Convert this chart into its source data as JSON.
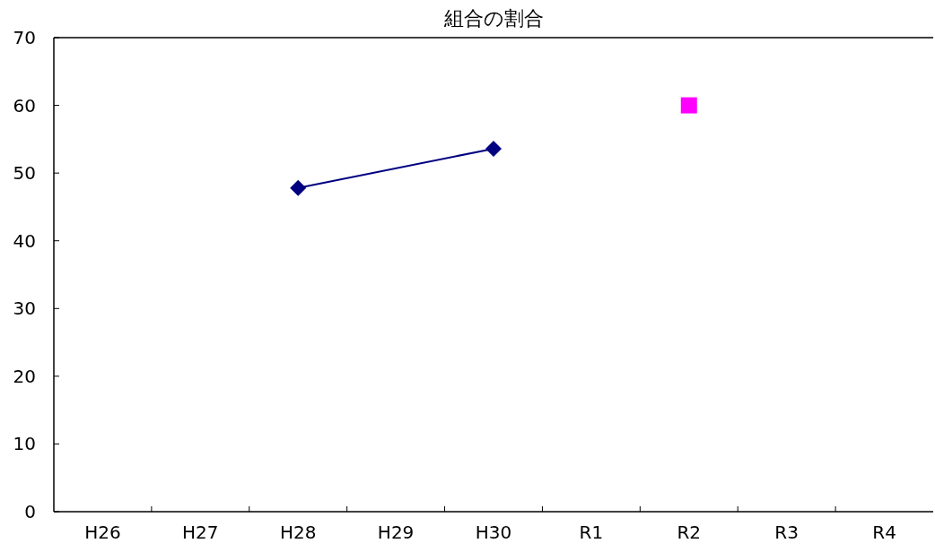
{
  "chart_data": {
    "type": "line",
    "title": "組合の割合",
    "categories": [
      "H26",
      "H27",
      "H28",
      "H29",
      "H30",
      "R1",
      "R2",
      "R3",
      "R4"
    ],
    "series": [
      {
        "color": "#000080",
        "marker": "diamond",
        "values": [
          null,
          null,
          47.8,
          null,
          53.6,
          null,
          null,
          null,
          null
        ]
      },
      {
        "color": "#ff00ff",
        "marker": "square",
        "values": [
          null,
          null,
          null,
          null,
          null,
          null,
          60,
          null,
          null
        ]
      }
    ],
    "ylim": [
      0,
      70
    ],
    "yticks": [
      0,
      10,
      20,
      30,
      40,
      50,
      60,
      70
    ],
    "grid": false
  }
}
